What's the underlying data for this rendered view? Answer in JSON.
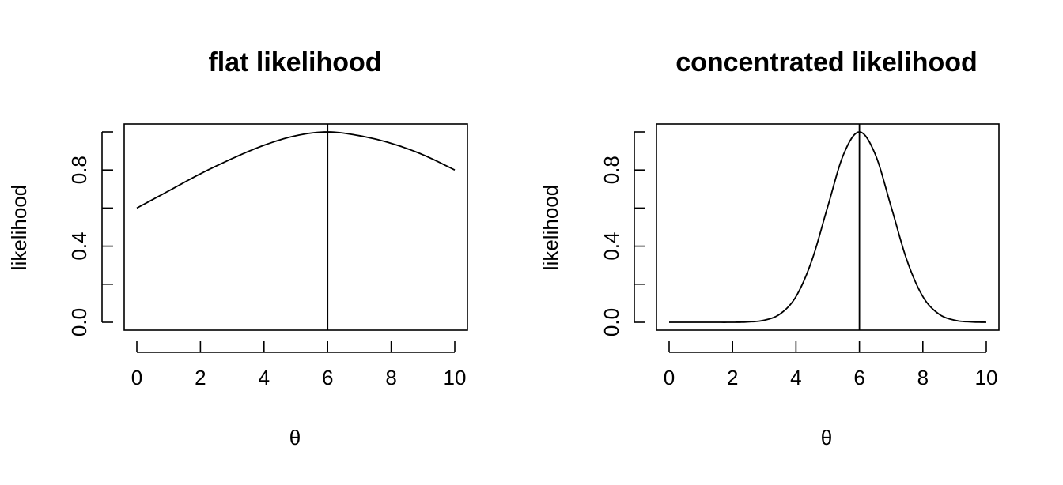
{
  "chart_data": [
    {
      "type": "line",
      "title": "flat likelihood",
      "xlabel": "θ",
      "ylabel": "likelihood",
      "xlim": [
        0,
        10
      ],
      "ylim": [
        0,
        1
      ],
      "x_ticks": [
        0,
        2,
        4,
        6,
        8,
        10
      ],
      "x_tick_labels": [
        "0",
        "2",
        "4",
        "6",
        "8",
        "10"
      ],
      "y_ticks": [
        0,
        0.2,
        0.4,
        0.6,
        0.8,
        1.0
      ],
      "y_tick_labels": [
        "0.0",
        "",
        "0.4",
        "",
        "0.8",
        ""
      ],
      "grid": false,
      "vline_x": 6,
      "series": [
        {
          "x": [
            0,
            1,
            2,
            3,
            4,
            5,
            6,
            7,
            8,
            9,
            10
          ],
          "values": [
            0.6,
            0.69,
            0.78,
            0.86,
            0.93,
            0.98,
            1.0,
            0.98,
            0.94,
            0.88,
            0.8
          ]
        }
      ]
    },
    {
      "type": "line",
      "title": "concentrated likelihood",
      "xlabel": "θ",
      "ylabel": "likelihood",
      "xlim": [
        0,
        10
      ],
      "ylim": [
        0,
        1
      ],
      "x_ticks": [
        0,
        2,
        4,
        6,
        8,
        10
      ],
      "x_tick_labels": [
        "0",
        "2",
        "4",
        "6",
        "8",
        "10"
      ],
      "y_ticks": [
        0,
        0.2,
        0.4,
        0.6,
        0.8,
        1.0
      ],
      "y_tick_labels": [
        "0.0",
        "",
        "0.4",
        "",
        "0.8",
        ""
      ],
      "grid": false,
      "vline_x": 6,
      "series": [
        {
          "x": [
            0,
            1,
            2,
            2.5,
            3,
            3.5,
            4,
            4.5,
            5,
            5.5,
            6,
            6.5,
            7,
            7.5,
            8,
            8.5,
            9,
            9.5,
            10
          ],
          "values": [
            0.0,
            0.0,
            0.0,
            0.002,
            0.011,
            0.044,
            0.135,
            0.325,
            0.607,
            0.882,
            1.0,
            0.882,
            0.607,
            0.325,
            0.135,
            0.044,
            0.011,
            0.002,
            0.0
          ]
        }
      ]
    }
  ]
}
